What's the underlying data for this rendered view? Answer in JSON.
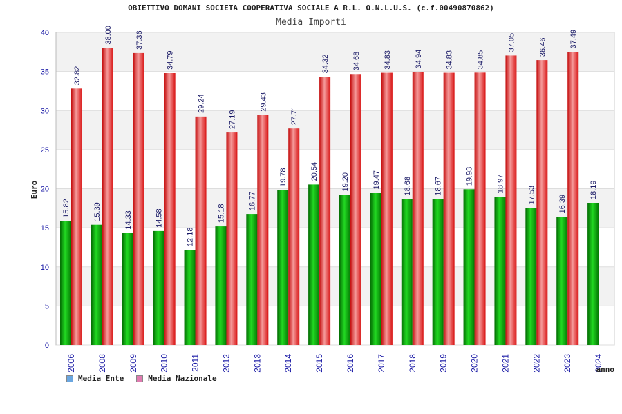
{
  "header": {
    "title": "OBIETTIVO DOMANI SOCIETA COOPERATIVA SOCIALE A R.L. O.N.L.U.S. (c.f.00490870862)",
    "subtitle": "Media Importi"
  },
  "legend": {
    "items": [
      {
        "label": "Media Ente",
        "color": "#6aa6e0"
      },
      {
        "label": "Media Nazionale",
        "color": "#e07ab0"
      }
    ]
  },
  "chart_data": {
    "type": "bar",
    "title": "Media Importi",
    "xlabel": "anno",
    "ylabel": "Euro",
    "ylim": [
      0,
      40
    ],
    "yticks": [
      0,
      5,
      10,
      15,
      20,
      25,
      30,
      35,
      40
    ],
    "grid": "horizontal bands",
    "legend_position": "bottom-left",
    "categories": [
      "2006",
      "2008",
      "2009",
      "2010",
      "2011",
      "2012",
      "2013",
      "2014",
      "2015",
      "2016",
      "2017",
      "2018",
      "2019",
      "2020",
      "2021",
      "2022",
      "2023",
      "2024"
    ],
    "series": [
      {
        "name": "Media Ente",
        "color": "#0aa00a",
        "values": [
          15.82,
          15.39,
          14.33,
          14.58,
          12.18,
          15.18,
          16.77,
          19.78,
          20.54,
          19.2,
          19.47,
          18.68,
          18.67,
          19.93,
          18.97,
          17.53,
          16.39,
          18.19
        ],
        "labels": [
          "15.82",
          "15.39",
          "14.33",
          "14.58",
          "12.18",
          "15.18",
          "16.77",
          "19.78",
          "20.54",
          "19.20",
          "19.47",
          "18.68",
          "18.67",
          "19.93",
          "18.97",
          "17.53",
          "16.39",
          "18.19"
        ]
      },
      {
        "name": "Media Nazionale",
        "color": "#e01818",
        "values": [
          32.82,
          38.0,
          37.36,
          34.79,
          29.24,
          27.19,
          29.43,
          27.71,
          34.32,
          34.68,
          34.83,
          34.94,
          34.83,
          34.85,
          37.05,
          36.46,
          37.49,
          null
        ],
        "labels": [
          "32.82",
          "38.00",
          "37.36",
          "34.79",
          "29.24",
          "27.19",
          "29.43",
          "27.71",
          "34.32",
          "34.68",
          "34.83",
          "34.94",
          "34.83",
          "34.85",
          "37.05",
          "36.46",
          "37.49",
          null
        ]
      }
    ]
  }
}
